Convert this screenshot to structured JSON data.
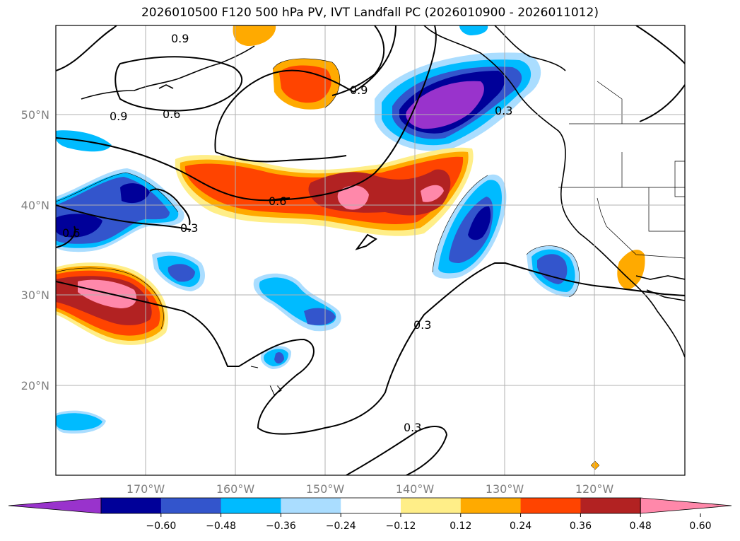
{
  "title": "2026010500 F120 500 hPa PV, IVT Landfall PC (2026010900 - 2026011012)",
  "lat_labels": [
    "50°N",
    "40°N",
    "30°N",
    "20°N"
  ],
  "lon_labels": [
    "170°W",
    "160°W",
    "150°W",
    "140°W",
    "130°W",
    "120°W"
  ],
  "colorbar": {
    "colors": [
      "#9933cc",
      "#000099",
      "#3355cc",
      "#00bbff",
      "#aaddff",
      "#ffffff",
      "#ffee88",
      "#ffaa00",
      "#ff4400",
      "#b22222",
      "#ff88aa"
    ],
    "tick_labels": [
      "−0.60",
      "−0.48",
      "−0.36",
      "−0.24",
      "−0.12",
      "0.12",
      "0.24",
      "0.36",
      "0.48",
      "0.60"
    ]
  },
  "contour_labels": [
    "0.9",
    "0.9",
    "0.9",
    "0.6",
    "0.6",
    "0.3",
    "0.3",
    "0.3",
    "0.3",
    "0.6"
  ]
}
